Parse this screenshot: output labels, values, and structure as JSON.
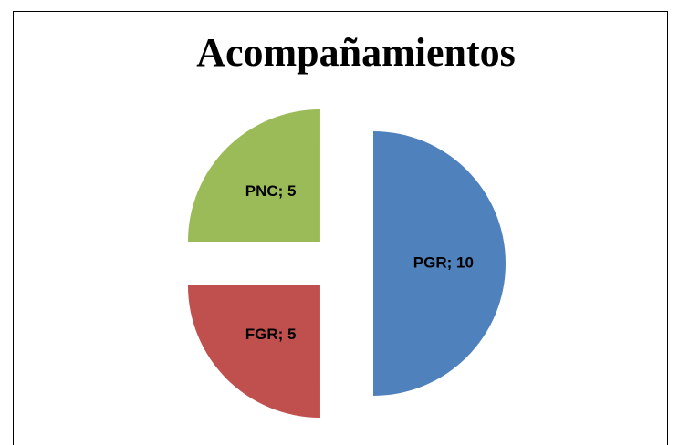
{
  "chart_data": {
    "type": "pie",
    "title": "Acompañamientos",
    "categories": [
      "PGR",
      "FGR",
      "PNC"
    ],
    "values": [
      10,
      5,
      5
    ],
    "value_labels": [
      "PGR; 10",
      "FGR; 5",
      "PNC; 5"
    ],
    "colors": [
      "#4f81bd",
      "#c0504d",
      "#9bbb59"
    ]
  }
}
